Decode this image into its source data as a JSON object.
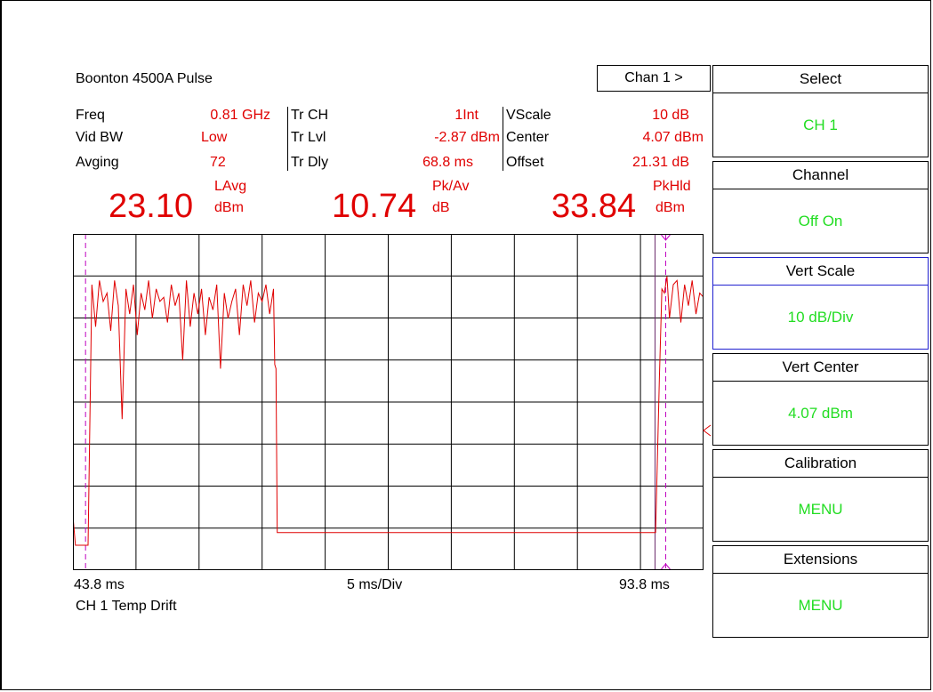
{
  "instrument": {
    "title": "Boonton 4500A Pulse"
  },
  "channel_button": {
    "label": "Chan 1 >"
  },
  "params": {
    "col1": [
      {
        "label": "Freq",
        "value": "0.81  GHz"
      },
      {
        "label": "Vid BW",
        "value": "Low"
      },
      {
        "label": "Avging",
        "value": "72"
      }
    ],
    "col2": [
      {
        "label": "Tr CH",
        "value": "1Int"
      },
      {
        "label": "Tr Lvl",
        "value": "-2.87  dBm"
      },
      {
        "label": "Tr Dly",
        "value": "68.8  ms"
      }
    ],
    "col3": [
      {
        "label": "VScale",
        "value": "10   dB"
      },
      {
        "label": "Center",
        "value": "4.07  dBm"
      },
      {
        "label": "Offset",
        "value": "21.31  dB"
      }
    ]
  },
  "readouts": [
    {
      "value": "23.10",
      "name": "LAvg",
      "unit": "dBm"
    },
    {
      "value": "10.74",
      "name": "Pk/Av",
      "unit": "dB"
    },
    {
      "value": "33.84",
      "name": "PkHld",
      "unit": "dBm"
    }
  ],
  "axis": {
    "start": "43.8 ms",
    "scale": "5 ms/Div",
    "end": "93.8 ms"
  },
  "trace_label": "CH 1 Temp Drift",
  "softkeys": [
    {
      "label": "Select",
      "value": "CH 1",
      "active": false
    },
    {
      "label": "Channel",
      "value": "Off  On",
      "active": false
    },
    {
      "label": "Vert Scale",
      "value": "10 dB/Div",
      "active": true
    },
    {
      "label": "Vert Center",
      "value": "4.07 dBm",
      "active": false
    },
    {
      "label": "Calibration",
      "value": "MENU",
      "active": false
    },
    {
      "label": "Extensions",
      "value": "MENU",
      "active": false
    }
  ],
  "colors": {
    "trace": "#e00000",
    "marker": "#c000c0",
    "softkey_value": "#22dd22",
    "active_border": "#2020d0"
  },
  "chart_data": {
    "type": "line",
    "x_start_ms": 43.8,
    "x_end_ms": 93.8,
    "x_div_ms": 5,
    "y_center_dBm": 4.07,
    "y_div_dB": 10,
    "grid": true,
    "markers_ms": [
      44.8,
      90.8
    ],
    "trace": {
      "x_ms": [
        43.8,
        44.0,
        44.1,
        44.3,
        44.7,
        45.0,
        45.3,
        45.6,
        45.9,
        46.2,
        46.5,
        46.8,
        47.1,
        47.4,
        47.7,
        48.0,
        48.3,
        48.6,
        48.9,
        49.2,
        49.5,
        49.8,
        50.1,
        50.4,
        50.7,
        51.0,
        51.3,
        51.6,
        51.9,
        52.2,
        52.5,
        52.8,
        53.1,
        53.4,
        53.7,
        54.0,
        54.3,
        54.6,
        54.9,
        55.2,
        55.5,
        55.8,
        56.1,
        56.4,
        56.7,
        57.0,
        57.3,
        57.6,
        57.9,
        58.2,
        58.5,
        58.8,
        59.1,
        59.4,
        59.7,
        59.8,
        59.9,
        60.0,
        89.8,
        90.0,
        90.3,
        90.5,
        90.7,
        90.9,
        91.1,
        91.4,
        91.7,
        92.0,
        92.3,
        92.6,
        92.9,
        93.2,
        93.5,
        93.8
      ],
      "y_dBm": [
        -23,
        -30,
        -30,
        -30,
        -30,
        -30,
        32,
        22,
        33,
        28,
        30,
        21,
        33,
        27,
        0,
        31,
        25,
        32,
        20,
        30,
        26,
        33,
        24,
        31,
        28,
        29,
        23,
        32,
        27,
        30,
        14,
        33,
        22,
        30,
        25,
        31,
        20,
        29,
        26,
        32,
        12,
        30,
        24,
        28,
        31,
        20,
        32,
        27,
        33,
        23,
        30,
        28,
        32,
        25,
        31,
        13,
        12,
        -27,
        -27,
        -27,
        10,
        31,
        30,
        34,
        24,
        32,
        33,
        23,
        32,
        27,
        33,
        25,
        30,
        29
      ]
    }
  }
}
